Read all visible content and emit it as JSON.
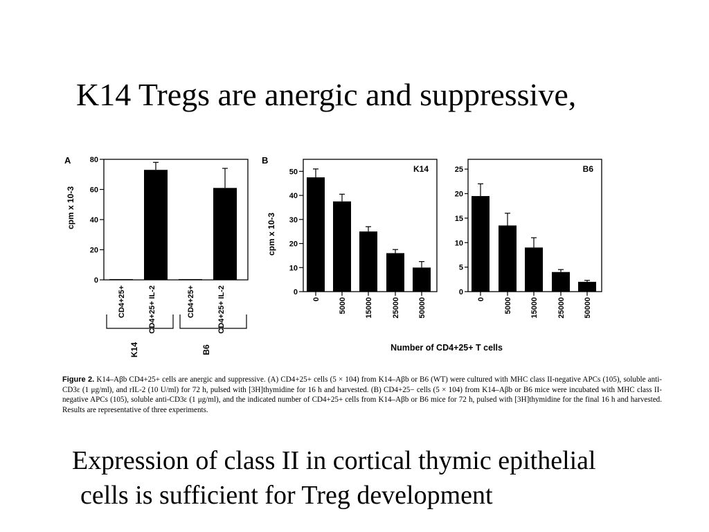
{
  "slide": {
    "title": "K14 Tregs are anergic and suppressive,",
    "bottom_line1": "Expression of class II in cortical thymic epithelial",
    "bottom_line2": "cells is sufficient for Treg development"
  },
  "caption": {
    "label": "Figure 2.",
    "text": "K14–Aβb CD4+25+ cells are anergic and suppressive. (A) CD4+25+ cells (5 × 104) from K14–Aβb or B6 (WT) were cultured with MHC class II-negative APCs (105), soluble anti-CD3ε (1 μg/ml), and rIL-2 (10 U/ml) for 72 h, pulsed with [3H]thymidine for 16 h and harvested. (B) CD4+25− cells (5 × 104) from K14–Aβb or B6 mice were incubated with MHC class II-negative APCs (105), soluble anti-CD3ε (1 μg/ml), and the indicated number of CD4+25+ cells from K14–Aβb or B6 mice for 72 h, pulsed with [3H]thymidine for the final 16 h and harvested. Results are representative of three experiments."
  },
  "chart_data": [
    {
      "panel": "A",
      "type": "bar",
      "ylabel": "cpm x 10-3",
      "ylim": [
        0,
        80
      ],
      "yticks": [
        "0",
        "20",
        "40",
        "60",
        "80"
      ],
      "categories": [
        "CD4+25+",
        "CD4+25+ IL-2",
        "CD4+25+",
        "CD4+25+ IL-2"
      ],
      "groups": [
        "K14",
        "B6"
      ],
      "values": [
        0.5,
        73,
        0.5,
        61
      ],
      "errors": [
        0,
        5,
        0,
        13
      ],
      "color": "#000000"
    },
    {
      "panel": "B",
      "type": "bar",
      "title": "K14",
      "ylabel": "cpm x 10-3",
      "ylim": [
        0,
        55
      ],
      "yticks": [
        "0",
        "10",
        "20",
        "30",
        "40",
        "50"
      ],
      "categories": [
        "0",
        "5000",
        "15000",
        "25000",
        "50000"
      ],
      "values": [
        47.5,
        37.5,
        25,
        16,
        10
      ],
      "errors": [
        3.5,
        3,
        2,
        1.5,
        2.5
      ],
      "color": "#000000"
    },
    {
      "panel": "B",
      "type": "bar",
      "title": "B6",
      "ylim": [
        0,
        27
      ],
      "yticks": [
        "0",
        "5",
        "10",
        "15",
        "20",
        "25"
      ],
      "categories": [
        "0",
        "5000",
        "15000",
        "25000",
        "50000"
      ],
      "values": [
        19.5,
        13.5,
        9,
        4,
        2
      ],
      "errors": [
        2.5,
        2.5,
        2,
        0.5,
        0.3
      ],
      "xlabel": "Number of CD4+25+ T cells",
      "color": "#000000"
    }
  ]
}
